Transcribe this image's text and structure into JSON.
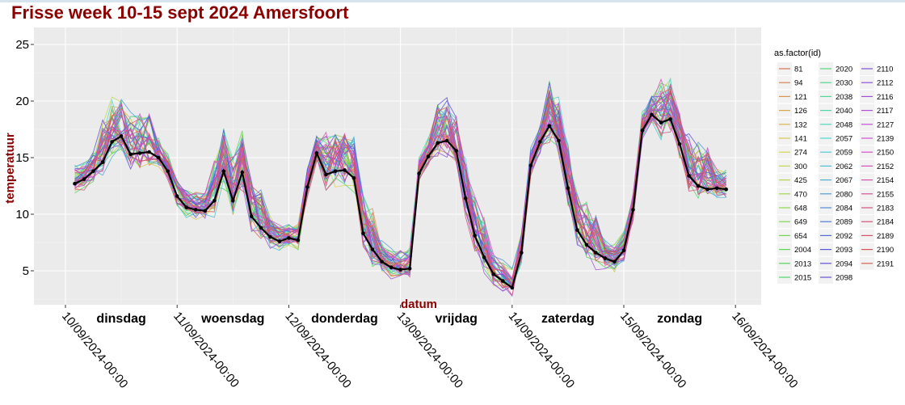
{
  "chart_data": {
    "type": "line",
    "title": "Frisse week 10-15 sept 2024 Amersfoort",
    "xlabel": "datum",
    "ylabel": "temperatuur",
    "yticks": [
      5,
      10,
      15,
      20,
      25
    ],
    "ylim": [
      2,
      26.5
    ],
    "x_ticks": [
      "10/09/2024-00:00",
      "11/09/2024-00:00",
      "12/09/2024-00:00",
      "13/09/2024-00:00",
      "14/09/2024-00:00",
      "15/09/2024-00:00",
      "16/09/2024-00:00"
    ],
    "day_labels": [
      "dinsdag",
      "woensdag",
      "donderdag",
      "vrijdag",
      "zaterdag",
      "zondag"
    ],
    "grid": true,
    "legend": {
      "title": "as.factor(id)",
      "placement": "right",
      "ids": [
        "81",
        "94",
        "121",
        "126",
        "132",
        "141",
        "274",
        "300",
        "425",
        "470",
        "648",
        "649",
        "654",
        "2004",
        "2013",
        "2015",
        "2020",
        "2030",
        "2038",
        "2040",
        "2048",
        "2057",
        "2059",
        "2062",
        "2067",
        "2080",
        "2084",
        "2089",
        "2092",
        "2093",
        "2094",
        "2098",
        "2110",
        "2112",
        "2116",
        "2117",
        "2127",
        "2139",
        "2150",
        "2152",
        "2154",
        "2155",
        "2183",
        "2184",
        "2189",
        "2190",
        "2191"
      ]
    },
    "highlight_series": {
      "x_hours": [
        2,
        4,
        6,
        8,
        10,
        12,
        14,
        16,
        18,
        20,
        22,
        24,
        26,
        28,
        30,
        32,
        34,
        36,
        38,
        40,
        42,
        44,
        46,
        48,
        50,
        52,
        54,
        56,
        58,
        60,
        62,
        64,
        66,
        68,
        70,
        72,
        74,
        76,
        78,
        80,
        82,
        84,
        86,
        88,
        90,
        92,
        94,
        96,
        98,
        100,
        102,
        104,
        106,
        108,
        110,
        112,
        114,
        116,
        118,
        120,
        122,
        124,
        126,
        128,
        130,
        132,
        134,
        136,
        138,
        140,
        142
      ],
      "y": [
        12.7,
        13.1,
        13.8,
        14.6,
        16.4,
        16.9,
        15.3,
        15.4,
        15.5,
        15.0,
        13.8,
        11.6,
        10.6,
        10.4,
        10.3,
        11.2,
        13.8,
        11.2,
        13.7,
        9.8,
        8.8,
        8.0,
        7.6,
        7.9,
        7.7,
        12.4,
        15.4,
        13.5,
        13.8,
        13.9,
        13.2,
        8.3,
        6.9,
        5.8,
        5.3,
        5.1,
        5.2,
        13.6,
        15.1,
        16.3,
        16.5,
        15.6,
        11.4,
        8.1,
        6.2,
        4.7,
        4.1,
        3.5,
        6.6,
        14.3,
        16.4,
        17.8,
        16.5,
        12.3,
        8.6,
        7.3,
        6.6,
        6.1,
        5.8,
        6.8,
        10.4,
        17.4,
        18.8,
        18.1,
        18.4,
        16.2,
        13.4,
        12.5,
        12.2,
        12.3,
        12.2
      ]
    }
  }
}
